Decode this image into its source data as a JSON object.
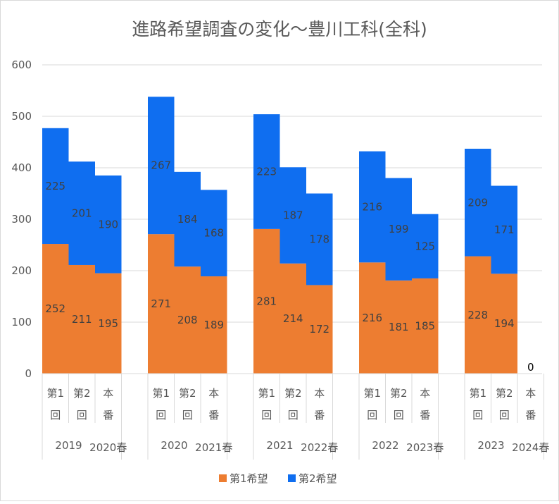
{
  "chart_data": {
    "type": "bar",
    "stacked": true,
    "title": "進路希望調査の変化～豊川工科(全科)",
    "ylim": [
      0,
      600
    ],
    "yticks": [
      0,
      100,
      200,
      300,
      400,
      500,
      600
    ],
    "grid": true,
    "legend_position": "bottom",
    "series": [
      {
        "name": "第1希望",
        "color": "#ED7D31",
        "values": [
          252,
          211,
          195,
          271,
          208,
          189,
          281,
          214,
          172,
          216,
          181,
          185,
          228,
          194,
          0
        ]
      },
      {
        "name": "第2希望",
        "color": "#0F6EF0",
        "values": [
          225,
          201,
          190,
          267,
          184,
          168,
          223,
          187,
          178,
          216,
          199,
          125,
          209,
          171,
          0
        ]
      }
    ],
    "groups": [
      {
        "label_left": "2019",
        "label_right": "2020春",
        "items": [
          "第1回",
          "第2回",
          "本番"
        ]
      },
      {
        "label_left": "2020",
        "label_right": "2021春",
        "items": [
          "第1回",
          "第2回",
          "本番"
        ]
      },
      {
        "label_left": "2021",
        "label_right": "2022春",
        "items": [
          "第1回",
          "第2回",
          "本番"
        ]
      },
      {
        "label_left": "2022",
        "label_right": "2023春",
        "items": [
          "第1回",
          "第2回",
          "本番"
        ]
      },
      {
        "label_left": "2023",
        "label_right": "2024春",
        "items": [
          "第1回",
          "第2回",
          "本番"
        ]
      }
    ],
    "category_chars": [
      [
        "第1",
        "回"
      ],
      [
        "第2",
        "回"
      ],
      [
        "本",
        "番"
      ]
    ],
    "special_labels": [
      {
        "index": 14,
        "text": "0"
      }
    ]
  }
}
